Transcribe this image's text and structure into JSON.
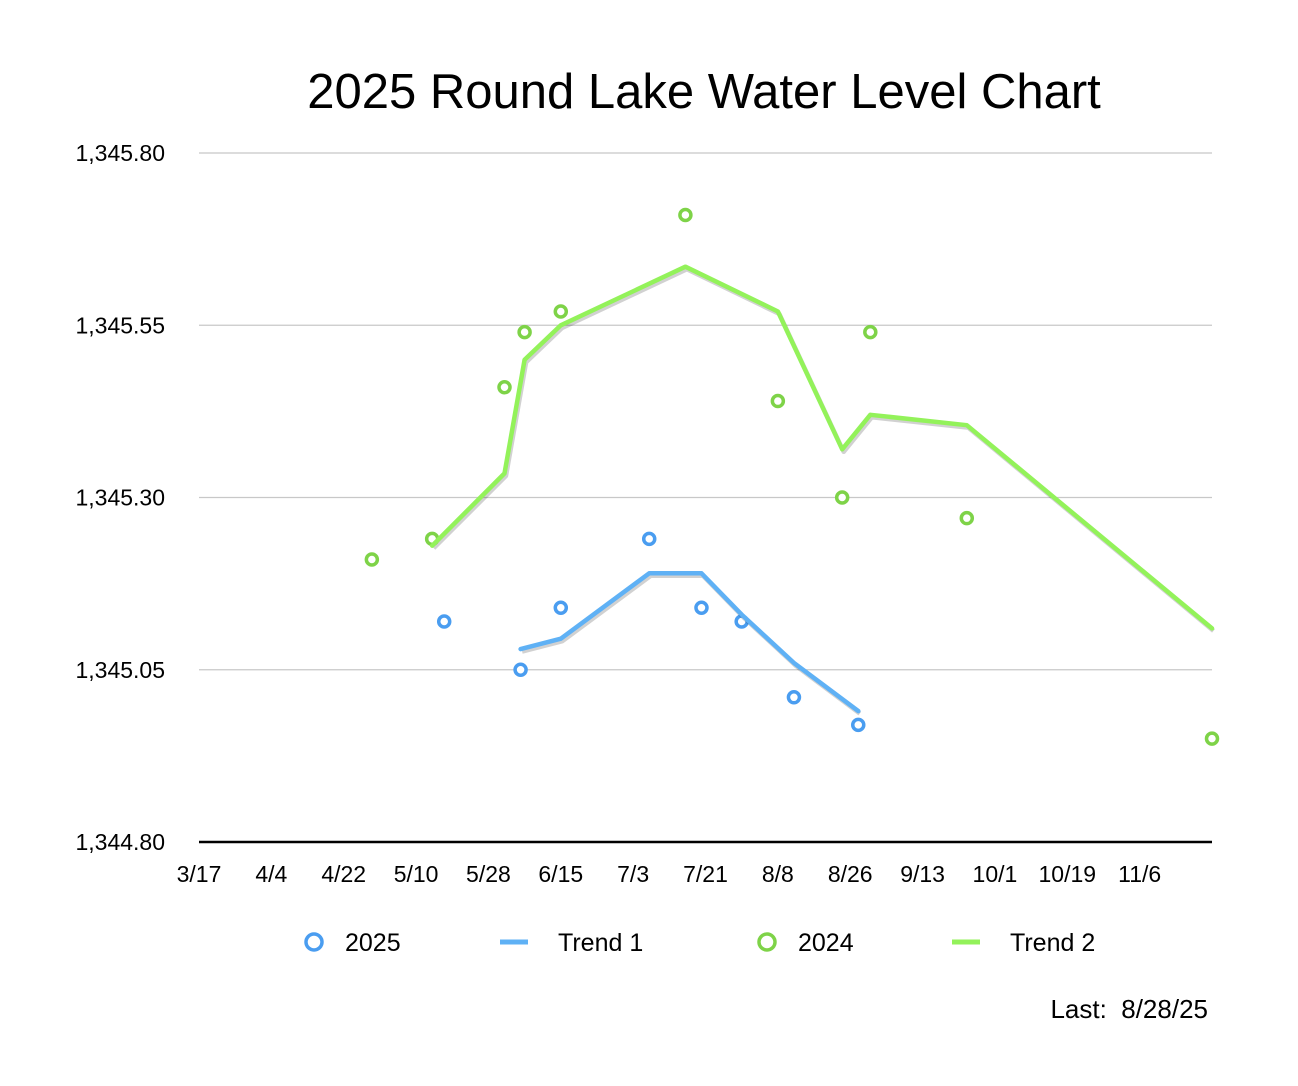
{
  "chart_data": {
    "type": "scatter",
    "title": "2025 Round Lake Water Level Chart",
    "xlabel": "",
    "ylabel": "",
    "x_ticks": [
      "3/17",
      "4/4",
      "4/22",
      "5/10",
      "5/28",
      "6/15",
      "7/3",
      "7/21",
      "8/8",
      "8/26",
      "9/13",
      "10/1",
      "10/19",
      "11/6"
    ],
    "x_range": [
      "2025-03-17",
      "2025-11-24"
    ],
    "y_ticks": [
      "1,344.80",
      "1,345.05",
      "1,345.30",
      "1,345.55",
      "1,345.80"
    ],
    "ylim": [
      1344.8,
      1345.8
    ],
    "grid": true,
    "legend_position": "bottom",
    "series": [
      {
        "name": "2025",
        "kind": "points",
        "color": "#4a9df0",
        "points": [
          {
            "x": "2025-05-17",
            "y": 1345.12
          },
          {
            "x": "2025-06-05",
            "y": 1345.05
          },
          {
            "x": "2025-06-15",
            "y": 1345.14
          },
          {
            "x": "2025-07-07",
            "y": 1345.24
          },
          {
            "x": "2025-07-20",
            "y": 1345.14
          },
          {
            "x": "2025-07-30",
            "y": 1345.12
          },
          {
            "x": "2025-08-12",
            "y": 1345.01
          },
          {
            "x": "2025-08-28",
            "y": 1344.97
          }
        ]
      },
      {
        "name": "Trend 1",
        "kind": "line",
        "color": "#5fb1f5",
        "points": [
          {
            "x": "2025-06-05",
            "y": 1345.08
          },
          {
            "x": "2025-06-15",
            "y": 1345.095
          },
          {
            "x": "2025-07-07",
            "y": 1345.19
          },
          {
            "x": "2025-07-20",
            "y": 1345.19
          },
          {
            "x": "2025-07-30",
            "y": 1345.13
          },
          {
            "x": "2025-08-12",
            "y": 1345.06
          },
          {
            "x": "2025-08-28",
            "y": 1344.99
          }
        ]
      },
      {
        "name": "2024",
        "kind": "points",
        "color": "#7ed348",
        "points": [
          {
            "x": "2025-04-29",
            "y": 1345.21
          },
          {
            "x": "2025-05-14",
            "y": 1345.24
          },
          {
            "x": "2025-06-01",
            "y": 1345.46
          },
          {
            "x": "2025-06-06",
            "y": 1345.54
          },
          {
            "x": "2025-06-15",
            "y": 1345.57
          },
          {
            "x": "2025-07-16",
            "y": 1345.71
          },
          {
            "x": "2025-08-08",
            "y": 1345.44
          },
          {
            "x": "2025-08-24",
            "y": 1345.3
          },
          {
            "x": "2025-08-31",
            "y": 1345.54
          },
          {
            "x": "2025-09-24",
            "y": 1345.27
          },
          {
            "x": "2025-11-24",
            "y": 1344.95
          }
        ]
      },
      {
        "name": "Trend 2",
        "kind": "line",
        "color": "#93f25a",
        "points": [
          {
            "x": "2025-05-14",
            "y": 1345.23
          },
          {
            "x": "2025-06-01",
            "y": 1345.335
          },
          {
            "x": "2025-06-06",
            "y": 1345.5
          },
          {
            "x": "2025-06-15",
            "y": 1345.55
          },
          {
            "x": "2025-07-16",
            "y": 1345.635
          },
          {
            "x": "2025-08-08",
            "y": 1345.57
          },
          {
            "x": "2025-08-24",
            "y": 1345.37
          },
          {
            "x": "2025-08-31",
            "y": 1345.42
          },
          {
            "x": "2025-09-24",
            "y": 1345.405
          },
          {
            "x": "2025-11-24",
            "y": 1345.11
          }
        ]
      }
    ]
  },
  "footer": {
    "last_updated": "Last:  8/28/25"
  }
}
